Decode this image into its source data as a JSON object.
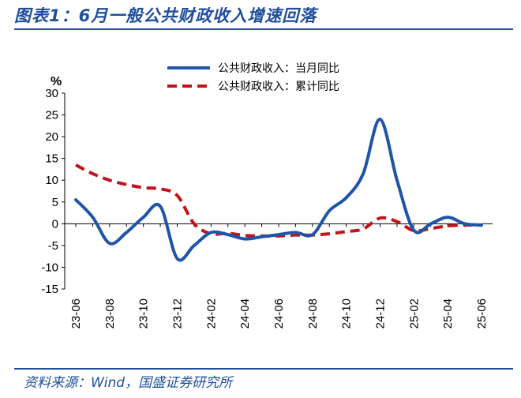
{
  "header": {
    "title": "图表1：6月一般公共财政收入增速回落"
  },
  "footer": {
    "source": "资料来源：Wind，国盛证券研究所"
  },
  "colors": {
    "accent": "#1f4e9c",
    "series_monthly": "#1f55a8",
    "series_cumulative": "#c0141c"
  },
  "chart_data": {
    "type": "line",
    "ylabel": "%",
    "ylim": [
      -15,
      30
    ],
    "yticks": [
      30,
      25,
      20,
      15,
      10,
      5,
      0,
      -5,
      -10,
      -15
    ],
    "x_labels": [
      "23-06",
      "23-08",
      "23-10",
      "23-12",
      "24-02",
      "24-04",
      "24-06",
      "24-08",
      "24-10",
      "24-12",
      "25-02",
      "25-04",
      "25-06"
    ],
    "x": [
      "23-06",
      "23-07",
      "23-08",
      "23-09",
      "23-10",
      "23-11",
      "23-12",
      "24-01",
      "24-02",
      "24-03",
      "24-04",
      "24-05",
      "24-06",
      "24-07",
      "24-08",
      "24-09",
      "24-10",
      "24-11",
      "24-12",
      "25-01",
      "25-02",
      "25-03",
      "25-04",
      "25-05",
      "25-06"
    ],
    "series": [
      {
        "name": "公共财政收入：当月同比",
        "style": "solid",
        "values": [
          5.5,
          1.5,
          -4.5,
          -2.0,
          1.5,
          4.0,
          -8.0,
          -5.0,
          -2.0,
          -2.5,
          -3.5,
          -3.0,
          -2.5,
          -2.0,
          -2.5,
          3.0,
          6.0,
          11.5,
          24.0,
          10.0,
          -1.5,
          0.0,
          1.5,
          0.0,
          -0.3
        ]
      },
      {
        "name": "公共财政收入：累计同比",
        "style": "dashed",
        "values": [
          13.5,
          11.5,
          10.0,
          9.0,
          8.3,
          8.0,
          6.5,
          0.0,
          -2.3,
          -2.2,
          -2.7,
          -2.8,
          -2.8,
          -2.6,
          -2.6,
          -2.3,
          -1.8,
          -1.2,
          1.3,
          0.5,
          -1.6,
          -1.1,
          -0.5,
          -0.3,
          -0.3
        ]
      }
    ],
    "legend_position": "top-right",
    "grid": false
  }
}
